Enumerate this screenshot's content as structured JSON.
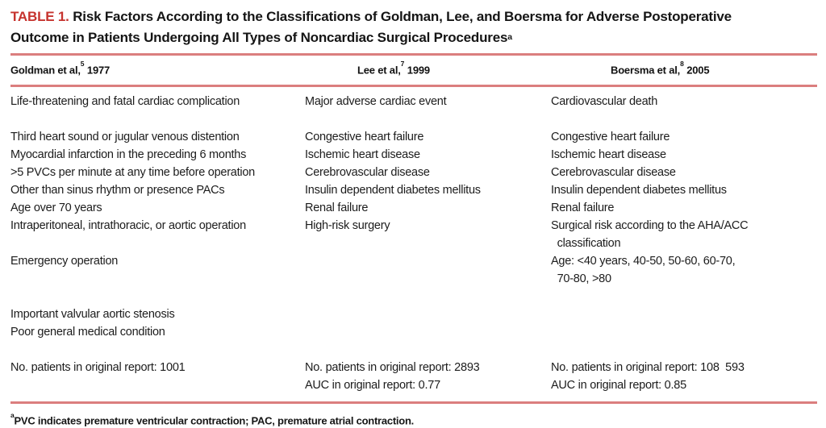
{
  "page": {
    "accent_red": "#c6332e",
    "rule_red": "#db7e7e",
    "background": "#ffffff"
  },
  "title": {
    "label": "TABLE 1.",
    "text": " Risk Factors According to the Classifications of Goldman, Lee, and Boersma for Adverse Postoperative Outcome in Patients Undergoing All Types of Noncardiac Surgical Procedures",
    "superscript": "a"
  },
  "header": {
    "columns": [
      {
        "name": "Goldman et al,",
        "ref": "5",
        "year": " 1977"
      },
      {
        "name": "Lee et al,",
        "ref": "7",
        "year": " 1999"
      },
      {
        "name": "Boersma et al,",
        "ref": "8",
        "year": " 2005"
      }
    ]
  },
  "body": {
    "rows": [
      {
        "spacer": false,
        "cells": [
          "Life-threatening and fatal cardiac complication",
          "Major adverse cardiac event",
          "Cardiovascular death"
        ]
      },
      {
        "spacer": true,
        "cells": [
          "",
          "",
          ""
        ]
      },
      {
        "spacer": false,
        "cells": [
          "Third heart sound or jugular venous distention",
          "Congestive heart failure",
          "Congestive heart failure"
        ]
      },
      {
        "spacer": false,
        "cells": [
          "Myocardial infarction in the preceding 6 months",
          "Ischemic heart disease",
          "Ischemic heart disease"
        ]
      },
      {
        "spacer": false,
        "cells": [
          ">5 PVCs per minute at any time before operation",
          "Cerebrovascular disease",
          "Cerebrovascular disease"
        ]
      },
      {
        "spacer": false,
        "cells": [
          "Other than sinus rhythm or presence PACs",
          "Insulin dependent diabetes mellitus",
          "Insulin dependent diabetes mellitus"
        ]
      },
      {
        "spacer": false,
        "cells": [
          "Age over 70 years",
          "Renal failure",
          "Renal failure"
        ]
      },
      {
        "spacer": false,
        "cells": [
          "Intraperitoneal, intrathoracic, or aortic operation",
          "High-risk surgery",
          "Surgical risk according to the AHA/ACC\n  classification"
        ]
      },
      {
        "spacer": false,
        "cells": [
          "Emergency operation",
          "",
          "Age: <40 years, 40-50, 50-60, 60-70,\n  70-80, >80"
        ]
      },
      {
        "spacer": true,
        "cells": [
          "",
          "",
          ""
        ]
      },
      {
        "spacer": false,
        "cells": [
          "Important valvular aortic stenosis",
          "",
          ""
        ]
      },
      {
        "spacer": false,
        "cells": [
          "Poor general medical condition",
          "",
          ""
        ]
      },
      {
        "spacer": true,
        "cells": [
          "",
          "",
          ""
        ]
      },
      {
        "spacer": false,
        "cells": [
          "No. patients in original report: 1001",
          "No. patients in original report: 2893",
          "No. patients in original report: 108  593"
        ]
      },
      {
        "spacer": false,
        "cells": [
          "",
          "AUC in original report: 0.77",
          "AUC in original report: 0.85"
        ]
      }
    ]
  },
  "footnote": {
    "superscript": "a",
    "text": "PVC indicates premature ventricular contraction; PAC, premature atrial contraction."
  }
}
